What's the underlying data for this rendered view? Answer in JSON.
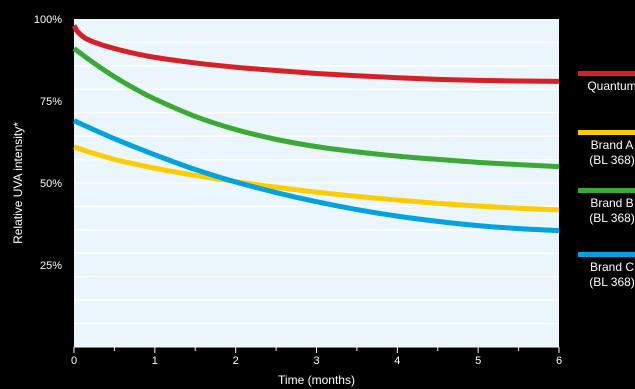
{
  "chart_data": {
    "type": "line",
    "title": "",
    "xlabel": "Time (months)",
    "ylabel": "Relative UVA intensity*",
    "xlim": [
      0,
      6
    ],
    "ylim": [
      0,
      100
    ],
    "xticks": [
      "0",
      "1",
      "2",
      "3",
      "4",
      "5",
      "6"
    ],
    "yticks": [
      {
        "value": 100,
        "label": "100%"
      },
      {
        "value": 75,
        "label": "75%"
      },
      {
        "value": 50,
        "label": "50%"
      },
      {
        "value": 25,
        "label": "25%"
      }
    ],
    "grid": true,
    "legend_position": "right",
    "background_color": "#eaf5fc",
    "grid_color": "#ffffff",
    "series": [
      {
        "label_lines": [
          "Quantum"
        ],
        "color": "#d71f26",
        "x": [
          0,
          0.05,
          0.15,
          0.3,
          0.5,
          0.75,
          1,
          1.5,
          2,
          2.5,
          3,
          3.5,
          4,
          4.5,
          5,
          5.5,
          6
        ],
        "y": [
          98,
          96,
          94,
          92.5,
          91,
          89.5,
          88.3,
          86.6,
          85.3,
          84.3,
          83.4,
          82.7,
          82.1,
          81.6,
          81.3,
          81.1,
          81
        ]
      },
      {
        "label_lines": [
          "Brand A",
          "(BL 368)"
        ],
        "color": "#ffcc00",
        "x": [
          0,
          0.25,
          0.5,
          0.75,
          1,
          1.5,
          2,
          2.5,
          3,
          3.5,
          4,
          4.5,
          5,
          5.5,
          6
        ],
        "y": [
          61,
          59,
          57.2,
          55.8,
          54.5,
          52.3,
          50.4,
          48.7,
          47.2,
          45.9,
          44.8,
          43.8,
          43,
          42.3,
          41.8
        ]
      },
      {
        "label_lines": [
          "Brand B",
          "(BL 368)"
        ],
        "color": "#3aaa35",
        "x": [
          0,
          0.25,
          0.5,
          0.75,
          1,
          1.5,
          2,
          2.5,
          3,
          3.5,
          4,
          4.5,
          5,
          5.5,
          6
        ],
        "y": [
          91,
          86.5,
          82.4,
          78.8,
          75.6,
          70.3,
          66.3,
          63.3,
          61.1,
          59.5,
          58.2,
          57.2,
          56.3,
          55.6,
          55
        ]
      },
      {
        "label_lines": [
          "Brand C",
          "(BL 368)"
        ],
        "color": "#00a3e0",
        "x": [
          0,
          0.25,
          0.5,
          0.75,
          1,
          1.5,
          2,
          2.5,
          3,
          3.5,
          4,
          4.5,
          5,
          5.5,
          6
        ],
        "y": [
          69,
          66.2,
          63.5,
          61,
          58.6,
          54.1,
          50.3,
          47.1,
          44.3,
          41.9,
          39.9,
          38.3,
          37,
          36.1,
          35.5
        ]
      }
    ]
  }
}
